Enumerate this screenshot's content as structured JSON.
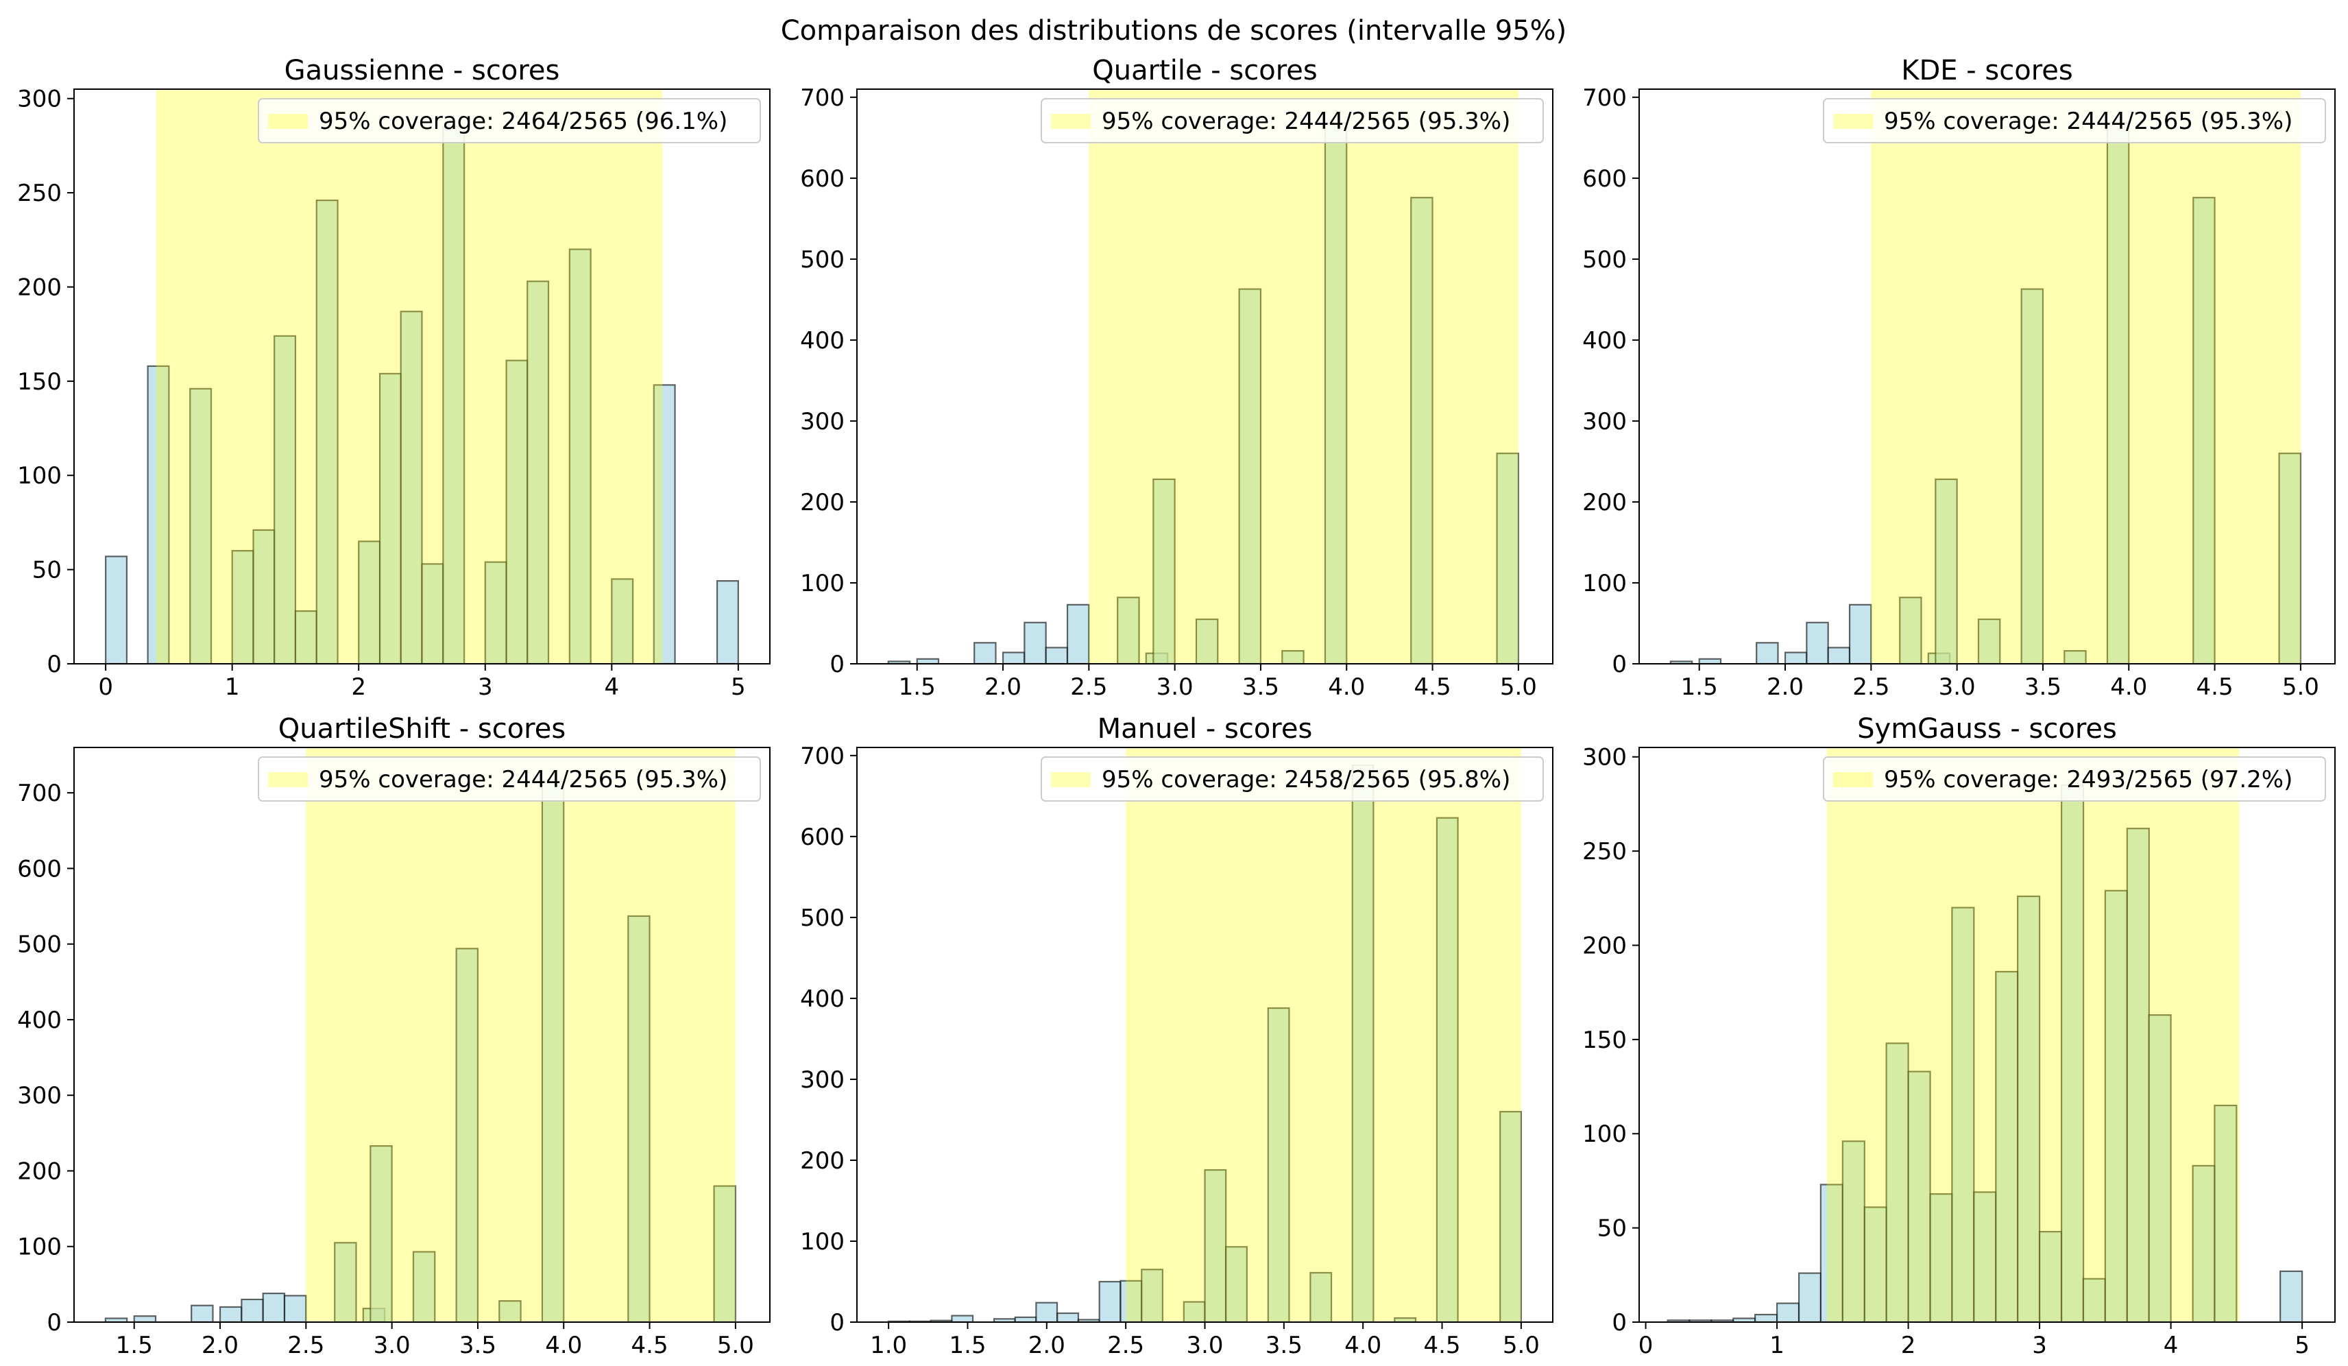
{
  "figure": {
    "suptitle": "Comparaison des distributions de scores (intervalle 95%)",
    "colors": {
      "bar_fill": "#add8e6",
      "bar_edge": "#000000",
      "band_fill": "#ffff00",
      "legend_edge": "#cccccc"
    }
  },
  "chart_data": [
    {
      "type": "bar",
      "title": "Gaussienne - scores",
      "legend": "95% coverage: 2464/2565 (96.1%)",
      "legend_position": "top-right",
      "grid": false,
      "interval": [
        0.4,
        4.4
      ],
      "xlim": [
        -0.25,
        5.25
      ],
      "ylim": [
        0,
        305
      ],
      "xticks": [
        0,
        1,
        2,
        3,
        4,
        5
      ],
      "xticklabels": [
        "0",
        "1",
        "2",
        "3",
        "4",
        "5"
      ],
      "yticks": [
        0,
        50,
        100,
        150,
        200,
        250,
        300
      ],
      "bin_width": 0.167,
      "bins": [
        {
          "x": 0.0,
          "value": 57
        },
        {
          "x": 0.333,
          "value": 158
        },
        {
          "x": 0.667,
          "value": 146
        },
        {
          "x": 1.0,
          "value": 60
        },
        {
          "x": 1.167,
          "value": 71
        },
        {
          "x": 1.333,
          "value": 174
        },
        {
          "x": 1.5,
          "value": 28
        },
        {
          "x": 1.667,
          "value": 246
        },
        {
          "x": 2.0,
          "value": 65
        },
        {
          "x": 2.167,
          "value": 154
        },
        {
          "x": 2.333,
          "value": 187
        },
        {
          "x": 2.5,
          "value": 53
        },
        {
          "x": 2.667,
          "value": 285
        },
        {
          "x": 3.0,
          "value": 54
        },
        {
          "x": 3.167,
          "value": 161
        },
        {
          "x": 3.333,
          "value": 203
        },
        {
          "x": 3.667,
          "value": 220
        },
        {
          "x": 4.0,
          "value": 45
        },
        {
          "x": 4.333,
          "value": 148
        },
        {
          "x": 4.833,
          "value": 44
        }
      ]
    },
    {
      "type": "bar",
      "title": "Quartile - scores",
      "legend": "95% coverage: 2444/2565 (95.3%)",
      "legend_position": "top-right",
      "grid": false,
      "interval": [
        2.5,
        5.0
      ],
      "xlim": [
        1.15,
        5.2
      ],
      "ylim": [
        0,
        710
      ],
      "xticks": [
        1.5,
        2.0,
        2.5,
        3.0,
        3.5,
        4.0,
        4.5,
        5.0
      ],
      "xticklabels": [
        "1.5",
        "2.0",
        "2.5",
        "3.0",
        "3.5",
        "4.0",
        "4.5",
        "5.0"
      ],
      "yticks": [
        0,
        100,
        200,
        300,
        400,
        500,
        600,
        700
      ],
      "bin_width": 0.125,
      "bins": [
        {
          "x": 1.333,
          "value": 3
        },
        {
          "x": 1.5,
          "value": 6
        },
        {
          "x": 1.833,
          "value": 26
        },
        {
          "x": 2.0,
          "value": 14
        },
        {
          "x": 2.125,
          "value": 51
        },
        {
          "x": 2.25,
          "value": 20
        },
        {
          "x": 2.375,
          "value": 73
        },
        {
          "x": 2.667,
          "value": 82
        },
        {
          "x": 2.833,
          "value": 13
        },
        {
          "x": 2.875,
          "value": 228
        },
        {
          "x": 3.125,
          "value": 55
        },
        {
          "x": 3.375,
          "value": 463
        },
        {
          "x": 3.625,
          "value": 16
        },
        {
          "x": 3.875,
          "value": 668
        },
        {
          "x": 4.375,
          "value": 576
        },
        {
          "x": 4.875,
          "value": 260
        }
      ]
    },
    {
      "type": "bar",
      "title": "KDE - scores",
      "legend": "95% coverage: 2444/2565 (95.3%)",
      "legend_position": "top-right",
      "grid": false,
      "interval": [
        2.5,
        5.0
      ],
      "xlim": [
        1.15,
        5.2
      ],
      "ylim": [
        0,
        710
      ],
      "xticks": [
        1.5,
        2.0,
        2.5,
        3.0,
        3.5,
        4.0,
        4.5,
        5.0
      ],
      "xticklabels": [
        "1.5",
        "2.0",
        "2.5",
        "3.0",
        "3.5",
        "4.0",
        "4.5",
        "5.0"
      ],
      "yticks": [
        0,
        100,
        200,
        300,
        400,
        500,
        600,
        700
      ],
      "bin_width": 0.125,
      "bins": [
        {
          "x": 1.333,
          "value": 3
        },
        {
          "x": 1.5,
          "value": 6
        },
        {
          "x": 1.833,
          "value": 26
        },
        {
          "x": 2.0,
          "value": 14
        },
        {
          "x": 2.125,
          "value": 51
        },
        {
          "x": 2.25,
          "value": 20
        },
        {
          "x": 2.375,
          "value": 73
        },
        {
          "x": 2.667,
          "value": 82
        },
        {
          "x": 2.833,
          "value": 13
        },
        {
          "x": 2.875,
          "value": 228
        },
        {
          "x": 3.125,
          "value": 55
        },
        {
          "x": 3.375,
          "value": 463
        },
        {
          "x": 3.625,
          "value": 16
        },
        {
          "x": 3.875,
          "value": 668
        },
        {
          "x": 4.375,
          "value": 576
        },
        {
          "x": 4.875,
          "value": 260
        }
      ]
    },
    {
      "type": "bar",
      "title": "QuartileShift - scores",
      "legend": "95% coverage: 2444/2565 (95.3%)",
      "legend_position": "top-right",
      "grid": false,
      "interval": [
        2.5,
        5.0
      ],
      "xlim": [
        1.15,
        5.2
      ],
      "ylim": [
        0,
        760
      ],
      "xticks": [
        1.5,
        2.0,
        2.5,
        3.0,
        3.5,
        4.0,
        4.5,
        5.0
      ],
      "xticklabels": [
        "1.5",
        "2.0",
        "2.5",
        "3.0",
        "3.5",
        "4.0",
        "4.5",
        "5.0"
      ],
      "yticks": [
        0,
        100,
        200,
        300,
        400,
        500,
        600,
        700
      ],
      "bin_width": 0.125,
      "bins": [
        {
          "x": 1.333,
          "value": 5
        },
        {
          "x": 1.5,
          "value": 8
        },
        {
          "x": 1.833,
          "value": 22
        },
        {
          "x": 2.0,
          "value": 20
        },
        {
          "x": 2.125,
          "value": 30
        },
        {
          "x": 2.25,
          "value": 38
        },
        {
          "x": 2.375,
          "value": 35
        },
        {
          "x": 2.667,
          "value": 105
        },
        {
          "x": 2.833,
          "value": 18
        },
        {
          "x": 2.875,
          "value": 233
        },
        {
          "x": 3.125,
          "value": 93
        },
        {
          "x": 3.375,
          "value": 494
        },
        {
          "x": 3.625,
          "value": 28
        },
        {
          "x": 3.875,
          "value": 715
        },
        {
          "x": 4.375,
          "value": 537
        },
        {
          "x": 4.875,
          "value": 180
        }
      ]
    },
    {
      "type": "bar",
      "title": "Manuel - scores",
      "legend": "95% coverage: 2458/2565 (95.8%)",
      "legend_position": "top-right",
      "grid": false,
      "interval": [
        2.5,
        5.0
      ],
      "xlim": [
        0.8,
        5.2
      ],
      "ylim": [
        0,
        710
      ],
      "xticks": [
        1.0,
        1.5,
        2.0,
        2.5,
        3.0,
        3.5,
        4.0,
        4.5,
        5.0
      ],
      "xticklabels": [
        "1.0",
        "1.5",
        "2.0",
        "2.5",
        "3.0",
        "3.5",
        "4.0",
        "4.5",
        "5.0"
      ],
      "yticks": [
        0,
        100,
        200,
        300,
        400,
        500,
        600,
        700
      ],
      "bin_width": 0.133,
      "bins": [
        {
          "x": 1.0,
          "value": 1
        },
        {
          "x": 1.133,
          "value": 1
        },
        {
          "x": 1.267,
          "value": 2
        },
        {
          "x": 1.4,
          "value": 8
        },
        {
          "x": 1.667,
          "value": 4
        },
        {
          "x": 1.8,
          "value": 6
        },
        {
          "x": 1.933,
          "value": 24
        },
        {
          "x": 2.067,
          "value": 11
        },
        {
          "x": 2.2,
          "value": 3
        },
        {
          "x": 2.333,
          "value": 50
        },
        {
          "x": 2.467,
          "value": 51
        },
        {
          "x": 2.6,
          "value": 65
        },
        {
          "x": 2.867,
          "value": 25
        },
        {
          "x": 3.0,
          "value": 188
        },
        {
          "x": 3.133,
          "value": 93
        },
        {
          "x": 3.4,
          "value": 388
        },
        {
          "x": 3.667,
          "value": 61
        },
        {
          "x": 3.933,
          "value": 688
        },
        {
          "x": 4.2,
          "value": 5
        },
        {
          "x": 4.467,
          "value": 623
        },
        {
          "x": 4.867,
          "value": 260
        }
      ]
    },
    {
      "type": "bar",
      "title": "SymGauss - scores",
      "legend": "95% coverage: 2493/2565 (97.2%)",
      "legend_position": "top-right",
      "grid": false,
      "interval": [
        1.38,
        4.52
      ],
      "xlim": [
        -0.05,
        5.25
      ],
      "ylim": [
        0,
        305
      ],
      "xticks": [
        0,
        1,
        2,
        3,
        4,
        5
      ],
      "xticklabels": [
        "0",
        "1",
        "2",
        "3",
        "4",
        "5"
      ],
      "yticks": [
        0,
        50,
        100,
        150,
        200,
        250,
        300
      ],
      "bin_width": 0.167,
      "bins": [
        {
          "x": 0.167,
          "value": 1
        },
        {
          "x": 0.333,
          "value": 1
        },
        {
          "x": 0.5,
          "value": 1
        },
        {
          "x": 0.667,
          "value": 2
        },
        {
          "x": 0.833,
          "value": 4
        },
        {
          "x": 1.0,
          "value": 10
        },
        {
          "x": 1.167,
          "value": 26
        },
        {
          "x": 1.333,
          "value": 73
        },
        {
          "x": 1.5,
          "value": 96
        },
        {
          "x": 1.667,
          "value": 61
        },
        {
          "x": 1.833,
          "value": 148
        },
        {
          "x": 2.0,
          "value": 133
        },
        {
          "x": 2.167,
          "value": 68
        },
        {
          "x": 2.333,
          "value": 220
        },
        {
          "x": 2.5,
          "value": 69
        },
        {
          "x": 2.667,
          "value": 186
        },
        {
          "x": 2.833,
          "value": 226
        },
        {
          "x": 3.0,
          "value": 48
        },
        {
          "x": 3.167,
          "value": 285
        },
        {
          "x": 3.333,
          "value": 23
        },
        {
          "x": 3.5,
          "value": 229
        },
        {
          "x": 3.667,
          "value": 262
        },
        {
          "x": 3.833,
          "value": 163
        },
        {
          "x": 4.167,
          "value": 83
        },
        {
          "x": 4.333,
          "value": 115
        },
        {
          "x": 4.833,
          "value": 27
        }
      ]
    }
  ]
}
